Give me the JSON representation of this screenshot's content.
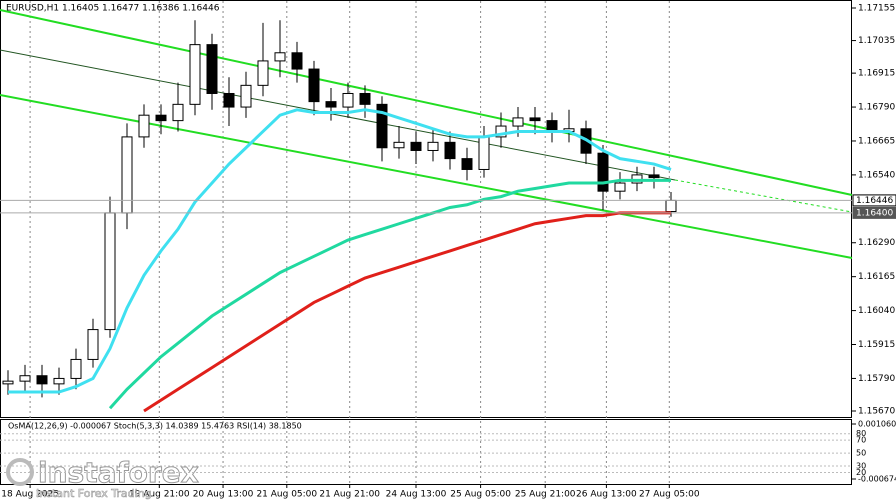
{
  "chart_data": {
    "type": "candlestick",
    "title": "EURUSD,H1  1.16405 1.16477 1.16386 1.16446",
    "open": [
      1.1577,
      1.1578,
      1.158,
      1.1577,
      1.1579,
      1.1586,
      1.1597,
      1.164,
      1.1668,
      1.1676,
      1.1674,
      1.168,
      1.1702,
      1.1684,
      1.1679,
      1.1687,
      1.1696,
      1.1699,
      1.1693,
      1.1681,
      1.1679,
      1.1684,
      1.168,
      1.1664,
      1.1666,
      1.1663,
      1.1666,
      1.166,
      1.1656,
      1.1668,
      1.1672,
      1.1675,
      1.1674,
      1.167,
      1.1671,
      1.1662,
      1.1648,
      1.1651,
      1.1654,
      1.16405
    ],
    "high": [
      1.1582,
      1.1584,
      1.1584,
      1.1583,
      1.159,
      1.1601,
      1.1646,
      1.1673,
      1.168,
      1.168,
      1.1688,
      1.1711,
      1.1706,
      1.169,
      1.1692,
      1.171,
      1.1711,
      1.1703,
      1.1696,
      1.1686,
      1.1688,
      1.1687,
      1.1683,
      1.1672,
      1.167,
      1.1671,
      1.167,
      1.1664,
      1.1672,
      1.1677,
      1.1679,
      1.1679,
      1.1677,
      1.1678,
      1.1674,
      1.1665,
      1.1655,
      1.1657,
      1.1657,
      1.16477
    ],
    "low": [
      1.1573,
      1.1574,
      1.1572,
      1.1573,
      1.1575,
      1.1583,
      1.1594,
      1.1634,
      1.1664,
      1.1669,
      1.167,
      1.1676,
      1.1678,
      1.1672,
      1.1675,
      1.1683,
      1.169,
      1.1688,
      1.1676,
      1.1674,
      1.1675,
      1.1675,
      1.1659,
      1.166,
      1.1658,
      1.1659,
      1.1656,
      1.1652,
      1.1653,
      1.1664,
      1.1668,
      1.1669,
      1.1666,
      1.1666,
      1.1658,
      1.1641,
      1.1645,
      1.1648,
      1.1649,
      1.16386
    ],
    "close": [
      1.1578,
      1.158,
      1.1577,
      1.1579,
      1.1586,
      1.1597,
      1.164,
      1.1668,
      1.1676,
      1.1674,
      1.168,
      1.1702,
      1.1684,
      1.1679,
      1.1687,
      1.1696,
      1.1699,
      1.1693,
      1.1681,
      1.1679,
      1.1684,
      1.168,
      1.1664,
      1.1666,
      1.1663,
      1.1666,
      1.166,
      1.1656,
      1.1668,
      1.1672,
      1.1675,
      1.1674,
      1.167,
      1.1671,
      1.1662,
      1.1648,
      1.1651,
      1.1654,
      1.1653,
      1.16446
    ],
    "series": [
      {
        "color": "#3fe0f0",
        "values": [
          1.1574,
          1.1574,
          1.1574,
          1.1574,
          1.1576,
          1.1579,
          1.159,
          1.1605,
          1.1617,
          1.1626,
          1.1634,
          1.1644,
          1.1651,
          1.1658,
          1.1664,
          1.167,
          1.1676,
          1.1678,
          1.1677,
          1.1677,
          1.1677,
          1.1678,
          1.1677,
          1.1675,
          1.1673,
          1.1671,
          1.1669,
          1.1668,
          1.1668,
          1.1669,
          1.167,
          1.167,
          1.167,
          1.167,
          1.1667,
          1.1663,
          1.166,
          1.1659,
          1.1658,
          1.1656
        ]
      },
      {
        "color": "#20d9a0",
        "values": [
          null,
          null,
          null,
          null,
          null,
          null,
          1.1568,
          1.1575,
          1.1581,
          1.1587,
          1.1592,
          1.1597,
          1.1602,
          1.1606,
          1.161,
          1.1614,
          1.1618,
          1.1621,
          1.1624,
          1.1627,
          1.163,
          1.1632,
          1.1634,
          1.1636,
          1.1638,
          1.164,
          1.1642,
          1.1643,
          1.1645,
          1.1646,
          1.1648,
          1.1649,
          1.165,
          1.1651,
          1.1651,
          1.1651,
          1.1652,
          1.1652,
          1.1652,
          1.1652
        ]
      },
      {
        "color": "#e0201a",
        "values": [
          null,
          null,
          null,
          null,
          null,
          null,
          null,
          null,
          1.1567,
          1.1571,
          1.1575,
          1.1579,
          1.1583,
          1.1587,
          1.1591,
          1.1595,
          1.1599,
          1.1603,
          1.1607,
          1.161,
          1.1613,
          1.1616,
          1.1618,
          1.162,
          1.1622,
          1.1624,
          1.1626,
          1.1628,
          1.163,
          1.1632,
          1.1634,
          1.1636,
          1.1637,
          1.1638,
          1.1639,
          1.1639,
          1.164,
          1.164,
          1.164,
          1.164
        ]
      }
    ],
    "ylim": [
      1.1567,
      1.17155
    ],
    "yticks": [
      {
        "value": 1.1567,
        "label": "1.15670"
      },
      {
        "value": 1.1579,
        "label": "1.15790"
      },
      1.15915,
      {
        "value": 1.1604,
        "label": "1.16040"
      },
      1.16165,
      {
        "value": 1.1629,
        "label": "1.16290"
      },
      {
        "value": 1.1654,
        "label": "1.16540"
      },
      1.16665,
      {
        "value": 1.1679,
        "label": "1.16790"
      },
      1.16915,
      1.17035,
      1.17155
    ],
    "price_labels": [
      1.16446,
      {
        "value": 1.164,
        "label": "1.16400"
      }
    ],
    "xticks": [
      {
        "value": 1.3,
        "label": "18 Aug 2025"
      },
      {
        "value": 8.9,
        "label": "19 Aug 21:00"
      },
      {
        "value": 12.65,
        "label": "20 Aug 13:00"
      },
      {
        "value": 16.4,
        "label": "21 Aug 05:00"
      },
      {
        "value": 20.1,
        "label": "21 Aug 21:00"
      },
      {
        "value": 24,
        "label": "24 Aug 13:00"
      },
      {
        "value": 27.8,
        "label": "25 Aug 05:00"
      },
      {
        "value": 31.6,
        "label": "25 Aug 21:00"
      },
      {
        "value": 35.2,
        "label": "26 Aug 13:00"
      },
      {
        "value": 38.9,
        "label": "27 Aug 05:00"
      }
    ],
    "grid": true,
    "indicator_label": "OsMA(12,26,9) -0.000067 Stoch(5,3,3) 14.0389 15.4763 RSI(14) 38.1850",
    "osma_ylim": [
      -0.000674,
      0.00106
    ],
    "osma_yticks": [
      {
        "value": 0.00106,
        "label": "0.001060"
      },
      -0.000674
    ],
    "osc_ylim": [
      10,
      95
    ],
    "osc_yticks": [
      80,
      70,
      50,
      30,
      20
    ],
    "watermark": "instaforex",
    "watermark_tagline": "Instant Forex Trading"
  }
}
